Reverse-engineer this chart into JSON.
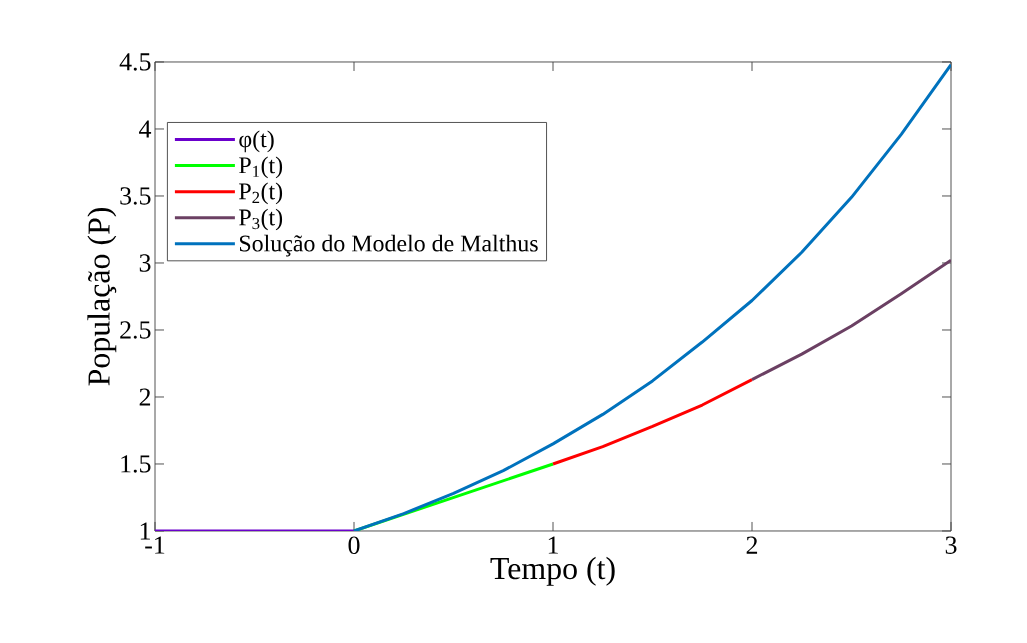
{
  "chart_data": {
    "type": "line",
    "xlabel": "Tempo (t)",
    "ylabel": "População (P)",
    "xlim": [
      -1,
      3
    ],
    "ylim": [
      1,
      4.5
    ],
    "xticks": [
      -1,
      0,
      1,
      2,
      3
    ],
    "yticks": [
      1,
      1.5,
      2,
      2.5,
      3,
      3.5,
      4,
      4.5
    ],
    "grid": false,
    "legend": "top left",
    "marker": "none",
    "line_style": "solid",
    "series": [
      {
        "name": "φ(t)",
        "color": "#6a00cc",
        "x": [
          -1,
          0
        ],
        "values": [
          1,
          1
        ]
      },
      {
        "name": "P$_{1}$(t)",
        "color": "#00ff00",
        "x": [
          0,
          0.5,
          1
        ],
        "values": [
          1,
          1.25,
          1.5
        ]
      },
      {
        "name": "P$_{2}$(t)",
        "color": "#ff0000",
        "x": [
          1,
          1.25,
          1.5,
          1.75,
          2
        ],
        "values": [
          1.5,
          1.63,
          1.78,
          1.94,
          2.13
        ]
      },
      {
        "name": "P$_{3}$(t)",
        "color": "#6b4063",
        "x": [
          2,
          2.25,
          2.5,
          2.75,
          3
        ],
        "values": [
          2.13,
          2.32,
          2.53,
          2.77,
          3.02
        ]
      },
      {
        "name": "Solução do Modelo de Malthus",
        "color": "#0072bd",
        "x": [
          0,
          0.25,
          0.5,
          0.75,
          1,
          1.25,
          1.5,
          1.75,
          2,
          2.25,
          2.5,
          2.75,
          3
        ],
        "values": [
          1,
          1.13,
          1.28,
          1.45,
          1.65,
          1.87,
          2.12,
          2.41,
          2.72,
          3.08,
          3.49,
          3.96,
          4.48
        ]
      }
    ]
  }
}
